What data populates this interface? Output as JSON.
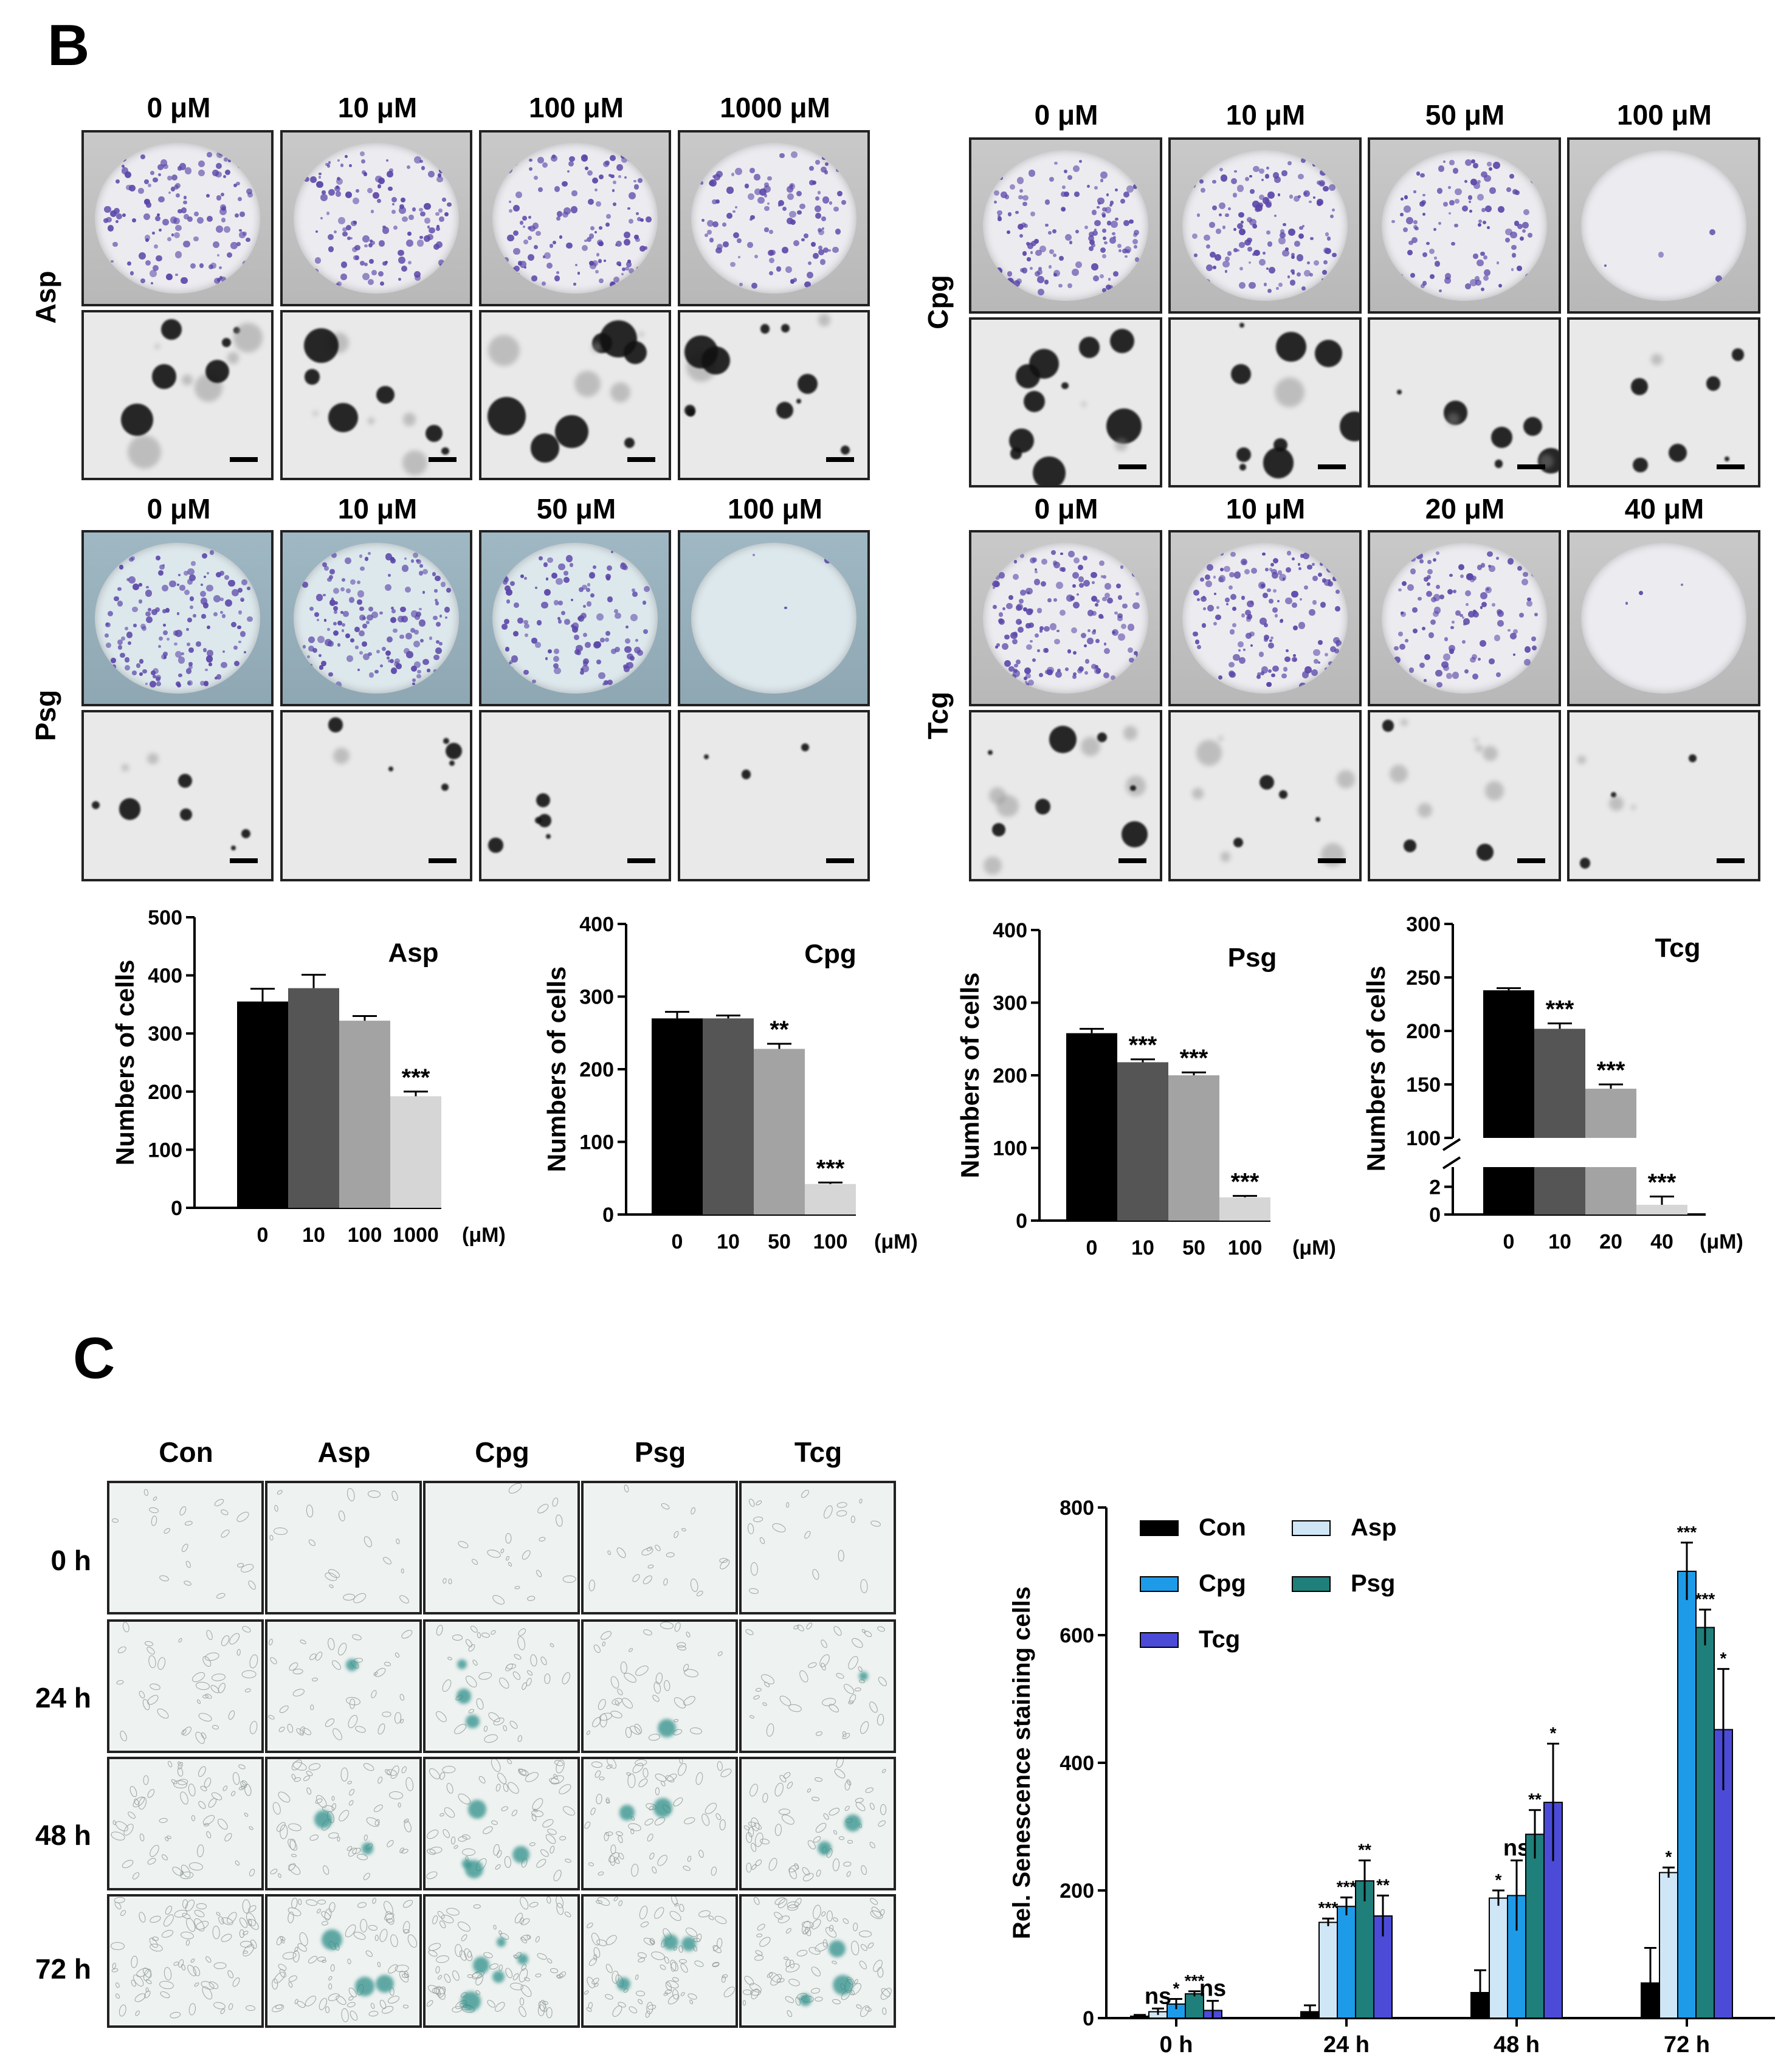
{
  "panel_b": {
    "label": "B",
    "asp": {
      "row_label": "Asp",
      "concentrations": [
        "0 μM",
        "10 μM",
        "100 μM",
        "1000 μM"
      ]
    },
    "cpg": {
      "row_label": "Cpg",
      "concentrations": [
        "0 μM",
        "10 μM",
        "50 μM",
        "100 μM"
      ]
    },
    "psg": {
      "row_label": "Psg",
      "concentrations": [
        "0 μM",
        "10 μM",
        "50 μM",
        "100 μM"
      ]
    },
    "tcg": {
      "row_label": "Tcg",
      "concentrations": [
        "0 μM",
        "10 μM",
        "20 μM",
        "40 μM"
      ]
    }
  },
  "panel_c": {
    "label": "C",
    "columns": [
      "Con",
      "Asp",
      "Cpg",
      "Psg",
      "Tcg"
    ],
    "rows": [
      "0 h",
      "24 h",
      "48 h",
      "72 h"
    ]
  },
  "colors": {
    "bar_black": "#000000",
    "bar_dark": "#555555",
    "bar_mid": "#a3a3a3",
    "bar_light": "#d6d6d6",
    "asp": "#cfe6f7",
    "cpg": "#1e9be8",
    "psg": "#1f7f7b",
    "tcg": "#4b4bd8",
    "crystal_violet": "#5a45a8"
  },
  "chart_data": [
    {
      "type": "bar",
      "title": "Asp",
      "ylabel": "Numbers of cells",
      "xunit": "(μM)",
      "categories": [
        "0",
        "10",
        "100",
        "1000"
      ],
      "values": [
        355,
        378,
        322,
        192
      ],
      "errors": [
        22,
        23,
        8,
        8
      ],
      "significance": [
        "",
        "",
        "",
        "***"
      ],
      "ylim": [
        0,
        500
      ],
      "yticks": [
        "0",
        "100",
        "200",
        "300",
        "400",
        "500"
      ]
    },
    {
      "type": "bar",
      "title": "Cpg",
      "ylabel": "Numbers of cells",
      "xunit": "(μM)",
      "categories": [
        "0",
        "10",
        "50",
        "100"
      ],
      "values": [
        270,
        270,
        228,
        42
      ],
      "errors": [
        9,
        4,
        7,
        2
      ],
      "significance": [
        "",
        "",
        "**",
        "***"
      ],
      "ylim": [
        0,
        400
      ],
      "yticks": [
        "0",
        "100",
        "200",
        "300",
        "400"
      ]
    },
    {
      "type": "bar",
      "title": "Psg",
      "ylabel": "Numbers of cells",
      "xunit": "(μM)",
      "categories": [
        "0",
        "10",
        "50",
        "100"
      ],
      "values": [
        258,
        218,
        200,
        32
      ],
      "errors": [
        6,
        4,
        4,
        2
      ],
      "significance": [
        "",
        "***",
        "***",
        "***"
      ],
      "ylim": [
        0,
        400
      ],
      "yticks": [
        "0",
        "100",
        "200",
        "300",
        "400"
      ]
    },
    {
      "type": "bar",
      "title": "Tcg",
      "ylabel": "Numbers of cells",
      "xunit": "(μM)",
      "categories": [
        "0",
        "10",
        "20",
        "40"
      ],
      "values": [
        238,
        202,
        146,
        0.7
      ],
      "errors": [
        2,
        5,
        4,
        0.6
      ],
      "significance": [
        "",
        "***",
        "***",
        "***"
      ],
      "ylim": [
        0,
        300
      ],
      "axis_break": [
        2,
        100
      ],
      "yticks": [
        "0",
        "2",
        "100",
        "150",
        "200",
        "250",
        "300"
      ]
    },
    {
      "type": "bar",
      "ylabel": "Rel. Senescence staining cells",
      "categories": [
        "0 h",
        "24 h",
        "48 h",
        "72 h"
      ],
      "series": [
        {
          "name": "Con",
          "values": [
            3,
            10,
            40,
            55
          ],
          "errors": [
            2,
            10,
            35,
            55
          ],
          "significance": [
            "",
            "",
            "",
            ""
          ]
        },
        {
          "name": "Asp",
          "values": [
            10,
            150,
            188,
            228
          ],
          "errors": [
            5,
            6,
            12,
            8
          ],
          "significance": [
            "ns",
            "***",
            "*",
            "*"
          ]
        },
        {
          "name": "Cpg",
          "values": [
            22,
            175,
            192,
            700
          ],
          "errors": [
            8,
            14,
            55,
            45
          ],
          "significance": [
            "*",
            "***",
            "ns",
            "***"
          ]
        },
        {
          "name": "Psg",
          "values": [
            38,
            215,
            288,
            612
          ],
          "errors": [
            4,
            32,
            38,
            28
          ],
          "significance": [
            "***",
            "**",
            "**",
            "***"
          ]
        },
        {
          "name": "Tcg",
          "values": [
            12,
            160,
            338,
            452
          ],
          "errors": [
            15,
            32,
            92,
            95
          ],
          "significance": [
            "ns",
            "**",
            "*",
            "*"
          ]
        }
      ],
      "ylim": [
        0,
        800
      ],
      "yticks": [
        "0",
        "200",
        "400",
        "600",
        "800"
      ],
      "legend": "top-left"
    }
  ]
}
